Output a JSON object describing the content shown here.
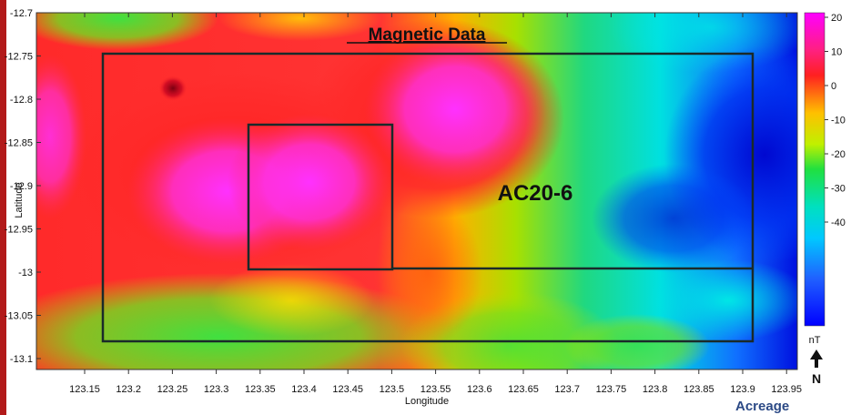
{
  "title": "Magnetic Data",
  "block_label": "AC20-6",
  "x_axis": {
    "label": "Longitude",
    "ticks": [
      "123.15",
      "123.2",
      "123.25",
      "123.3",
      "123.35",
      "123.4",
      "123.45",
      "123.5",
      "123.55",
      "123.6",
      "123.65",
      "123.7",
      "123.75",
      "123.8",
      "123.85",
      "123.9",
      "123.95"
    ]
  },
  "y_axis": {
    "label": "Latitude",
    "ticks": [
      "-12.7",
      "-12.75",
      "-12.8",
      "-12.85",
      "-12.9",
      "-12.95",
      "-13",
      "-13.05",
      "-13.1"
    ]
  },
  "colorbar": {
    "unit": "nT",
    "ticks": [
      "20",
      "10",
      "0",
      "-10",
      "-20",
      "-30",
      "-40"
    ]
  },
  "north_symbol": "N",
  "brand": "Acreage",
  "colors": {
    "accent_bar": "#b21a1a",
    "brand_text": "#2c4a86",
    "high_anomaly": "#ff00ff",
    "low_anomaly": "#0000ff",
    "block_outline": "#1a2a2a"
  }
}
